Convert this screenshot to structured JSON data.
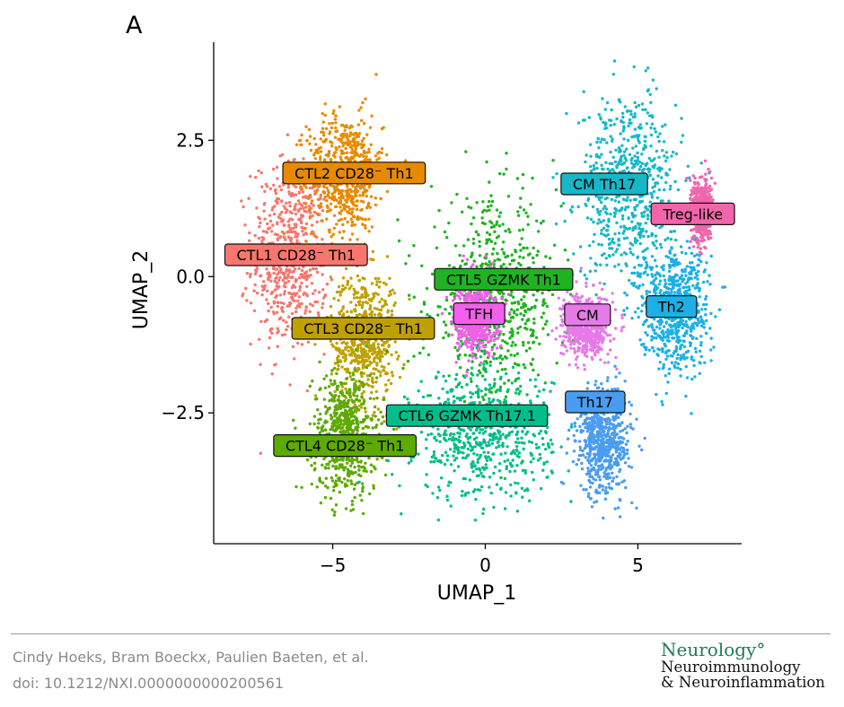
{
  "panel_label": "A",
  "chart_data": {
    "type": "scatter",
    "title": "",
    "xlabel": "UMAP_1",
    "ylabel": "UMAP_2",
    "xlim": [
      -8.9,
      8.4
    ],
    "ylim": [
      -4.9,
      4.3
    ],
    "xticks": [
      -5,
      0,
      5
    ],
    "yticks": [
      -2.5,
      0.0,
      2.5
    ],
    "xtick_labels": [
      "−5",
      "0",
      "5"
    ],
    "ytick_labels": [
      "−2.5",
      "0.0",
      "2.5"
    ],
    "grid": false,
    "legend": "none",
    "clusters": [
      {
        "name": "CTL1 CD28⁻ Th1",
        "color": "#F8766D",
        "center": [
          -6.4,
          0.4
        ],
        "spread": [
          1.0,
          1.4
        ],
        "label_at": [
          -6.2,
          0.4
        ]
      },
      {
        "name": "CTL2 CD28⁻ Th1",
        "color": "#E88A00",
        "center": [
          -4.6,
          1.9
        ],
        "spread": [
          1.0,
          0.85
        ],
        "label_at": [
          -4.3,
          1.9
        ]
      },
      {
        "name": "CTL3 CD28⁻ Th1",
        "color": "#BFA000",
        "center": [
          -4.0,
          -1.1
        ],
        "spread": [
          0.85,
          0.95
        ],
        "label_at": [
          -4.0,
          -0.95
        ]
      },
      {
        "name": "CTL4 CD28⁻ Th1",
        "color": "#5DAA00",
        "center": [
          -4.6,
          -2.9
        ],
        "spread": [
          0.85,
          0.9
        ],
        "label_at": [
          -4.6,
          -3.1
        ]
      },
      {
        "name": "CTL5 GZMK Th1",
        "color": "#1FB322",
        "center": [
          0.3,
          -0.5
        ],
        "spread": [
          1.7,
          1.5
        ],
        "label_at": [
          0.6,
          -0.05
        ]
      },
      {
        "name": "CTL6 GZMK Th17.1",
        "color": "#00BE8C",
        "center": [
          -0.1,
          -2.9
        ],
        "spread": [
          1.8,
          0.95
        ],
        "label_at": [
          -0.6,
          -2.55
        ]
      },
      {
        "name": "CM Th17",
        "color": "#16B8C8",
        "center": [
          4.7,
          1.6
        ],
        "spread": [
          1.3,
          1.4
        ],
        "label_at": [
          3.9,
          1.7
        ]
      },
      {
        "name": "Treg-like",
        "color": "#F066AA",
        "center": [
          7.1,
          1.2
        ],
        "spread": [
          0.25,
          0.45
        ],
        "label_at": [
          6.8,
          1.15
        ]
      },
      {
        "name": "Th2",
        "color": "#1CB0E6",
        "center": [
          6.2,
          -0.6
        ],
        "spread": [
          0.9,
          0.9
        ],
        "label_at": [
          6.1,
          -0.55
        ]
      },
      {
        "name": "CM",
        "color": "#E67AE8",
        "center": [
          3.3,
          -0.9
        ],
        "spread": [
          0.6,
          0.45
        ],
        "label_at": [
          3.35,
          -0.7
        ]
      },
      {
        "name": "TFH",
        "color": "#F25FEA",
        "center": [
          -0.3,
          -0.7
        ],
        "spread": [
          0.55,
          0.55
        ],
        "label_at": [
          -0.2,
          -0.68
        ]
      },
      {
        "name": "Th17",
        "color": "#4A9CF0",
        "center": [
          3.9,
          -3.0
        ],
        "spread": [
          0.7,
          0.8
        ],
        "label_at": [
          3.6,
          -2.3
        ]
      }
    ]
  },
  "footer": {
    "authors": "Cindy Hoeks, Bram Boeckx, Paulien Baeten, et al.",
    "doi": "doi: 10.1212/NXI.0000000000200561"
  },
  "journal": {
    "line1": "Neurology°",
    "line2": "Neuroimmunology",
    "line3": "& Neuroinflammation"
  }
}
